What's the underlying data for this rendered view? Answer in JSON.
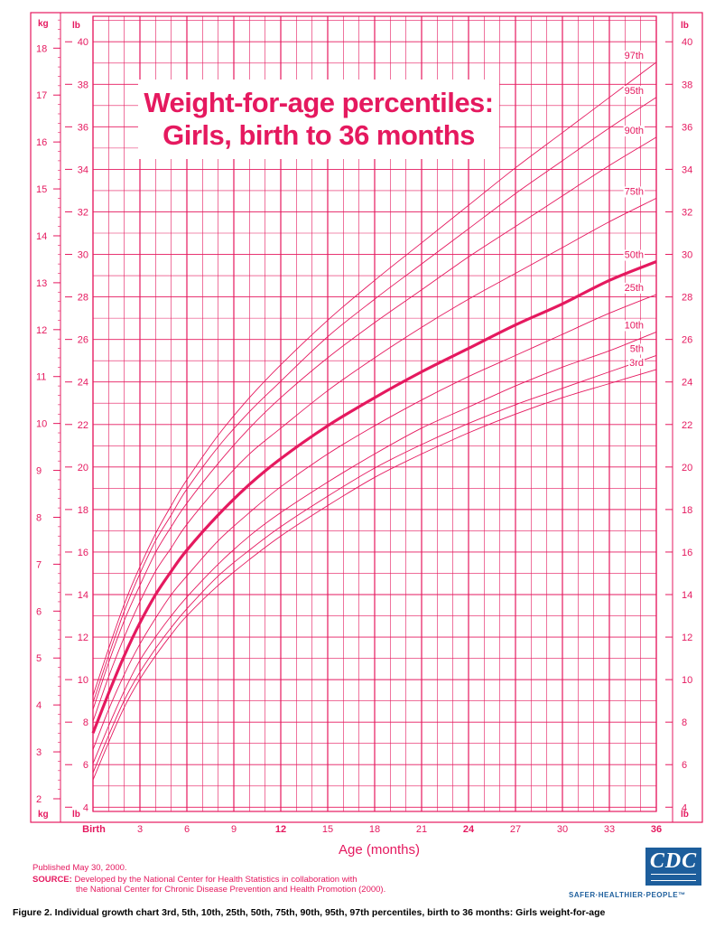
{
  "page": {
    "title_line1": "Weight-for-age percentiles:",
    "title_line2": "Girls, birth to 36 months",
    "published": "Published May 30, 2000.",
    "source_label": "SOURCE:",
    "source_line1": " Developed by the National Center for Health Statistics in collaboration with",
    "source_line2": "the National Center for Chronic Disease Prevention and Health Promotion (2000).",
    "caption": "Figure 2. Individual growth chart 3rd, 5th, 10th, 25th, 50th, 75th, 90th, 95th, 97th percentiles, birth to 36 months: Girls weight-for-age",
    "logo_text": "CDC",
    "logo_tagline": "SAFER·HEALTHIER·PEOPLE™"
  },
  "colors": {
    "accent": "#e5195f",
    "grid": "#e5195f",
    "caption": "#000000",
    "cdc_blue": "#1d5e9c"
  },
  "chart_data": {
    "type": "line",
    "title": "Weight-for-age percentiles: Girls, birth to 36 months",
    "xlabel": "Age (months)",
    "xlim": [
      0,
      36
    ],
    "x_ticks": [
      0,
      3,
      6,
      9,
      12,
      15,
      18,
      21,
      24,
      27,
      30,
      33,
      36
    ],
    "x_tick_labels": [
      "Birth",
      "3",
      "6",
      "9",
      "12",
      "15",
      "18",
      "21",
      "24",
      "27",
      "30",
      "33",
      "36"
    ],
    "x_bold_ticks": [
      0,
      12,
      24,
      36
    ],
    "kg_axis": {
      "label": "kg",
      "ylim": [
        1.73,
        18.68
      ],
      "ticks": [
        2,
        3,
        4,
        5,
        6,
        7,
        8,
        9,
        10,
        11,
        12,
        13,
        14,
        15,
        16,
        17,
        18
      ]
    },
    "lb_axis": {
      "label": "lb",
      "ylim": [
        3.8,
        41.2
      ],
      "ticks": [
        4,
        6,
        8,
        10,
        12,
        14,
        16,
        18,
        20,
        22,
        24,
        26,
        28,
        30,
        32,
        34,
        36,
        38,
        40
      ]
    },
    "grid": true,
    "x": [
      0,
      1,
      2,
      3,
      4,
      5,
      6,
      8,
      10,
      12,
      15,
      18,
      21,
      24,
      27,
      30,
      33,
      36
    ],
    "series": [
      {
        "name": "3rd",
        "label": "3rd",
        "bold": false,
        "values": [
          2.4,
          3.2,
          3.95,
          4.55,
          5.05,
          5.5,
          5.9,
          6.55,
          7.1,
          7.6,
          8.25,
          8.85,
          9.35,
          9.8,
          10.2,
          10.55,
          10.85,
          11.15
        ]
      },
      {
        "name": "5th",
        "label": "5th",
        "bold": false,
        "values": [
          2.55,
          3.35,
          4.1,
          4.7,
          5.2,
          5.65,
          6.05,
          6.75,
          7.3,
          7.8,
          8.45,
          9.05,
          9.55,
          10.0,
          10.4,
          10.75,
          11.1,
          11.45
        ]
      },
      {
        "name": "10th",
        "label": "10th",
        "bold": false,
        "values": [
          2.75,
          3.55,
          4.3,
          4.95,
          5.45,
          5.9,
          6.3,
          7.0,
          7.6,
          8.1,
          8.75,
          9.35,
          9.9,
          10.35,
          10.8,
          11.2,
          11.55,
          11.95
        ]
      },
      {
        "name": "25th",
        "label": "25th",
        "bold": false,
        "values": [
          3.05,
          3.9,
          4.65,
          5.3,
          5.85,
          6.35,
          6.75,
          7.5,
          8.1,
          8.65,
          9.35,
          9.95,
          10.5,
          11.0,
          11.45,
          11.9,
          12.35,
          12.75
        ]
      },
      {
        "name": "50th",
        "label": "50th",
        "bold": true,
        "values": [
          3.4,
          4.25,
          5.05,
          5.75,
          6.35,
          6.85,
          7.3,
          8.05,
          8.7,
          9.25,
          9.95,
          10.55,
          11.1,
          11.6,
          12.1,
          12.55,
          13.05,
          13.45
        ]
      },
      {
        "name": "75th",
        "label": "75th",
        "bold": false,
        "values": [
          3.65,
          4.6,
          5.45,
          6.2,
          6.85,
          7.35,
          7.85,
          8.65,
          9.35,
          9.9,
          10.7,
          11.4,
          12.05,
          12.65,
          13.2,
          13.75,
          14.3,
          14.8
        ]
      },
      {
        "name": "90th",
        "label": "90th",
        "bold": false,
        "values": [
          3.9,
          4.9,
          5.8,
          6.55,
          7.25,
          7.8,
          8.3,
          9.15,
          9.9,
          10.55,
          11.4,
          12.15,
          12.85,
          13.55,
          14.2,
          14.85,
          15.5,
          16.1
        ]
      },
      {
        "name": "95th",
        "label": "95th",
        "bold": false,
        "values": [
          4.05,
          5.05,
          6.0,
          6.8,
          7.5,
          8.05,
          8.6,
          9.5,
          10.25,
          10.9,
          11.85,
          12.65,
          13.4,
          14.15,
          14.9,
          15.6,
          16.3,
          16.95
        ]
      },
      {
        "name": "97th",
        "label": "97th",
        "bold": false,
        "values": [
          4.2,
          5.2,
          6.15,
          6.95,
          7.65,
          8.25,
          8.8,
          9.75,
          10.55,
          11.25,
          12.2,
          13.05,
          13.85,
          14.65,
          15.45,
          16.2,
          16.95,
          17.7
        ]
      }
    ]
  }
}
